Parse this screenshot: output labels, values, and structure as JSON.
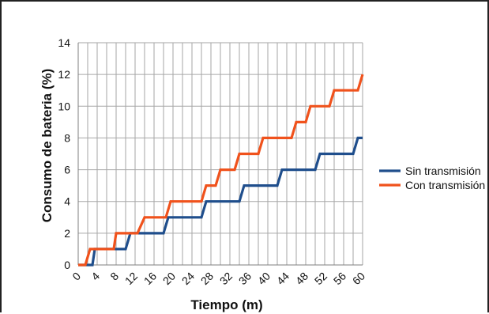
{
  "chart_data": {
    "type": "line",
    "title": "",
    "xlabel": "Tiempo (m)",
    "ylabel": "Consumo de bateria (%)",
    "xlim": [
      0,
      60
    ],
    "ylim": [
      0,
      14
    ],
    "x_ticks": [
      "0",
      "4",
      "8",
      "12",
      "16",
      "20",
      "24",
      "28",
      "32",
      "36",
      "40",
      "44",
      "48",
      "52",
      "56",
      "60"
    ],
    "y_ticks": [
      "0",
      "2",
      "4",
      "6",
      "8",
      "10",
      "12",
      "14"
    ],
    "grid": true,
    "legend_position": "right",
    "series": [
      {
        "name": "Sin transmisión",
        "color": "#1f4e8c",
        "x": [
          0,
          3,
          3.5,
          10,
          11,
          18,
          19,
          26,
          27,
          34,
          35,
          42,
          43,
          50,
          51,
          58,
          59,
          60
        ],
        "y": [
          0,
          0,
          1,
          1,
          2,
          2,
          3,
          3,
          4,
          4,
          5,
          5,
          6,
          6,
          7,
          7,
          8,
          8
        ]
      },
      {
        "name": "Con transmisión",
        "color": "#f0521c",
        "x": [
          0,
          1.5,
          2.5,
          7.5,
          8,
          12.5,
          14,
          18.5,
          19.5,
          26,
          27,
          29,
          30,
          33,
          34,
          38,
          39,
          45,
          46,
          48,
          49,
          53,
          54,
          57,
          59,
          60
        ],
        "y": [
          0,
          0,
          1,
          1,
          2,
          2,
          3,
          3,
          4,
          4,
          5,
          5,
          6,
          6,
          7,
          7,
          8,
          8,
          9,
          9,
          10,
          10,
          11,
          11,
          11,
          12
        ]
      }
    ]
  }
}
